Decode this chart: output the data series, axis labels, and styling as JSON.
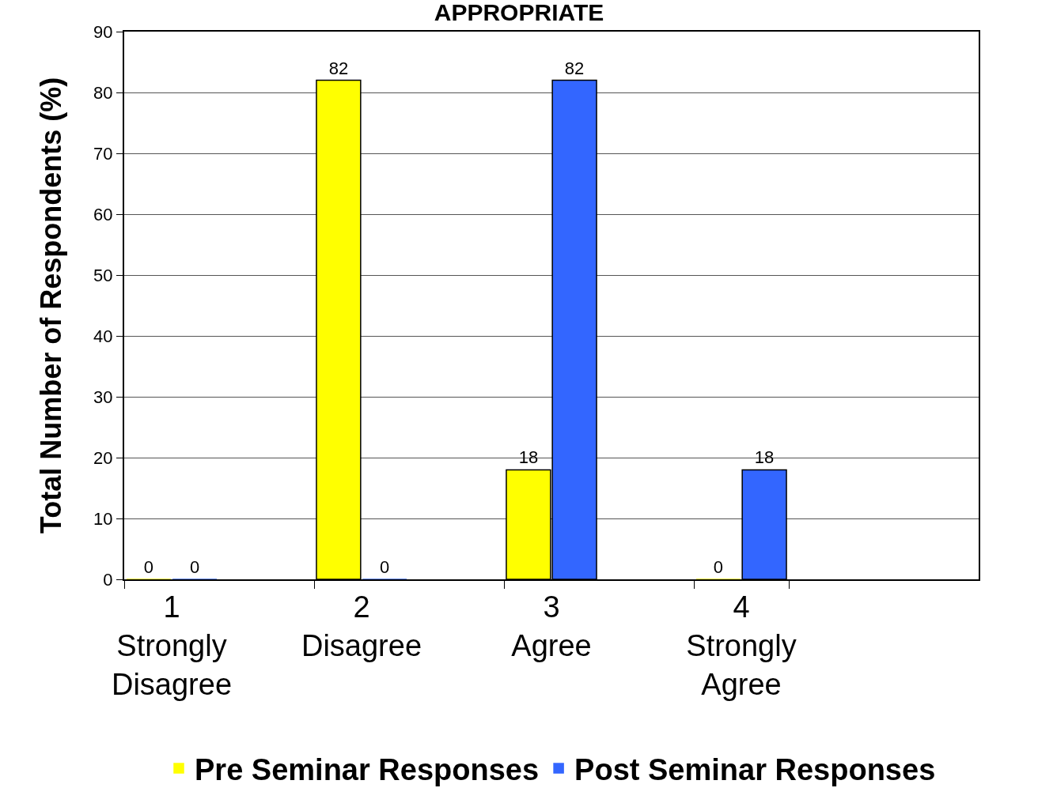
{
  "chart_data": {
    "type": "bar",
    "title": "APPROPRIATE",
    "ylabel": "Total Number of Respondents (%)",
    "categories": [
      "1\nStrongly\nDisagree",
      null,
      "2\nDisagree",
      null,
      "3\nAgree",
      null,
      "4\nStrongly\nAgree",
      null,
      null
    ],
    "series": [
      {
        "name": "Pre Seminar Responses",
        "color": "#ffff00",
        "values": [
          0,
          null,
          82,
          null,
          18,
          null,
          0,
          null,
          null
        ]
      },
      {
        "name": "Post Seminar Responses",
        "color": "#3366ff",
        "values": [
          0,
          null,
          0,
          null,
          82,
          null,
          18,
          null,
          null
        ]
      }
    ],
    "ylim": [
      0,
      90
    ],
    "yticks": [
      0,
      10,
      20,
      30,
      40,
      50,
      60,
      70,
      80,
      90
    ],
    "grid": "y",
    "legend": "bottom",
    "data_labels": true
  }
}
